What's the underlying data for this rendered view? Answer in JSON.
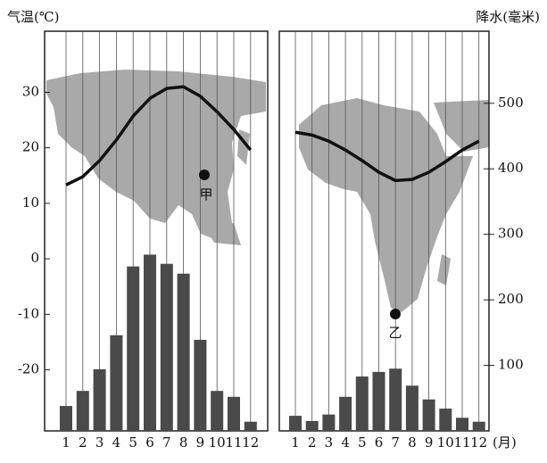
{
  "chart_data": [
    {
      "type": "combo",
      "ylabel": "气温(℃)",
      "categories": [
        "1",
        "2",
        "3",
        "4",
        "5",
        "6",
        "7",
        "8",
        "9",
        "10",
        "11",
        "12"
      ],
      "series": [
        {
          "type": "bar",
          "axis": "y2",
          "color": "#4a4a4a",
          "values": [
            38,
            61,
            94,
            146,
            251,
            269,
            255,
            240,
            139,
            61,
            52,
            14
          ]
        },
        {
          "type": "line",
          "color": "#111111",
          "values": [
            13.3,
            14.8,
            17.7,
            21.4,
            25.7,
            28.9,
            30.7,
            31.0,
            29.3,
            26.5,
            23.3,
            19.6
          ]
        }
      ],
      "ylim": [
        -31,
        41
      ],
      "yticks": [
        30,
        20,
        10,
        0,
        -10,
        -20
      ],
      "y2lim": [
        0,
        610
      ],
      "grid": true,
      "annotation": "甲"
    },
    {
      "type": "combo",
      "y2label": "降水(毫米)",
      "xlabel": "(月)",
      "categories": [
        "1",
        "2",
        "3",
        "4",
        "5",
        "6",
        "7",
        "8",
        "9",
        "10",
        "11",
        "12"
      ],
      "series": [
        {
          "type": "bar",
          "axis": "y2",
          "color": "#4a4a4a",
          "values": [
            23,
            15,
            25,
            52,
            83,
            90,
            95,
            69,
            48,
            34,
            20,
            14
          ]
        },
        {
          "type": "line",
          "color": "#111111",
          "values": [
            22.8,
            22.3,
            21.2,
            19.6,
            17.7,
            15.6,
            14.1,
            14.3,
            15.6,
            17.5,
            19.6,
            21.2
          ]
        }
      ],
      "ylim": [
        -31,
        41
      ],
      "y2lim": [
        0,
        610
      ],
      "y2ticks": [
        500,
        400,
        300,
        200,
        100
      ],
      "grid": true,
      "annotation": "乙"
    }
  ]
}
